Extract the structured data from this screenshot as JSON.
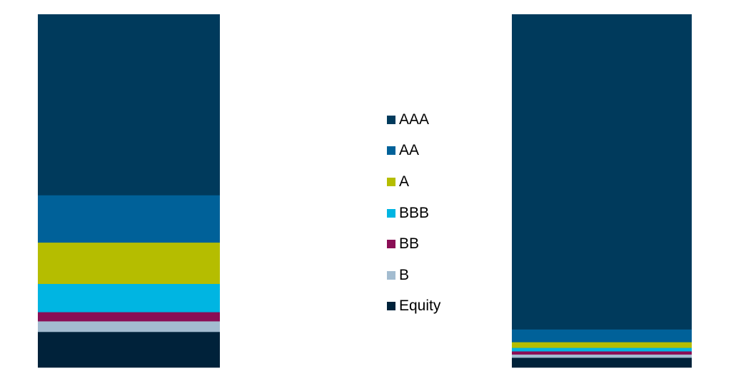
{
  "chart_data": {
    "type": "bar",
    "stacked": "100%",
    "categories": [
      "",
      ""
    ],
    "series": [
      {
        "name": "Equity",
        "color": "#00223A",
        "values": [
          10.1,
          2.8
        ]
      },
      {
        "name": "B",
        "color": "#A3BCD0",
        "values": [
          3.0,
          0.9
        ]
      },
      {
        "name": "BB",
        "color": "#8A0E55",
        "values": [
          2.6,
          0.9
        ]
      },
      {
        "name": "BBB",
        "color": "#00B5E2",
        "values": [
          8.0,
          1.0
        ]
      },
      {
        "name": "A",
        "color": "#B5BD00",
        "values": [
          11.7,
          1.6
        ]
      },
      {
        "name": "AA",
        "color": "#006199",
        "values": [
          13.4,
          3.6
        ]
      },
      {
        "name": "AAA",
        "color": "#003A5C",
        "values": [
          51.2,
          89.2
        ]
      }
    ],
    "legend": {
      "position": "center",
      "order": [
        "AAA",
        "AA",
        "A",
        "BBB",
        "BB",
        "B",
        "Equity"
      ]
    },
    "axes_visible": false,
    "grid": false,
    "ylim": [
      0,
      100
    ]
  }
}
